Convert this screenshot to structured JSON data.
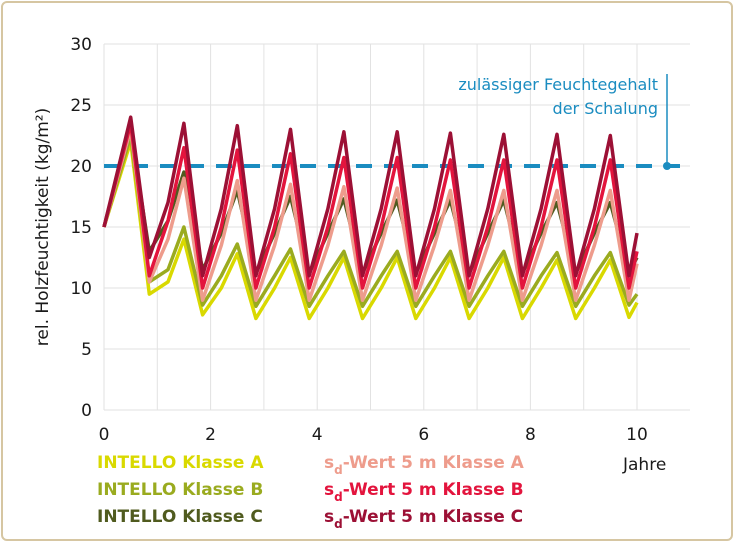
{
  "chart_data": {
    "type": "line",
    "title": "",
    "xlabel": "Jahre",
    "ylabel": "rel. Holzfeuchtigkeit (kg/m²)",
    "xlim": [
      0,
      10
    ],
    "ylim": [
      0,
      30
    ],
    "xticks": [
      0,
      2,
      4,
      6,
      8,
      10
    ],
    "yticks": [
      0,
      5,
      10,
      15,
      20,
      25,
      30
    ],
    "grid": true,
    "legend_placement": "bottom",
    "x": [
      0,
      0.5,
      0.85,
      1.2,
      1.5,
      1.85,
      2.2,
      2.5,
      2.85,
      3.2,
      3.5,
      3.85,
      4.2,
      4.5,
      4.85,
      5.2,
      5.5,
      5.85,
      6.2,
      6.5,
      6.85,
      7.2,
      7.5,
      7.85,
      8.2,
      8.5,
      8.85,
      9.2,
      9.5,
      9.85,
      10
    ],
    "series": [
      {
        "name": "INTELLO Klasse A",
        "color": "#d9d900",
        "values": [
          15,
          22,
          9.5,
          10.5,
          14,
          7.8,
          10,
          12.8,
          7.5,
          10,
          12.5,
          7.5,
          10,
          12.5,
          7.5,
          10,
          12.5,
          7.5,
          10,
          12.5,
          7.5,
          10,
          12.5,
          7.5,
          10,
          12.3,
          7.5,
          10,
          12.3,
          7.6,
          8.8
        ]
      },
      {
        "name": "INTELLO Klasse B",
        "color": "#9aab1f",
        "values": [
          15,
          22.5,
          10.5,
          11.5,
          15,
          8.6,
          11,
          13.6,
          8.5,
          11,
          13.2,
          8.5,
          11,
          13,
          8.5,
          11,
          13,
          8.5,
          11,
          13,
          8.5,
          11,
          13,
          8.5,
          11,
          12.9,
          8.5,
          11,
          12.9,
          8.6,
          9.5
        ]
      },
      {
        "name": "INTELLO Klasse C",
        "color": "#505b1f",
        "values": [
          15,
          23,
          13,
          15.5,
          19.5,
          11.5,
          14.5,
          18,
          11.2,
          14.5,
          17.5,
          11.2,
          14.5,
          17.3,
          11.2,
          14.5,
          17.2,
          11.2,
          14.5,
          17.2,
          11.2,
          14.5,
          17.2,
          11.2,
          14.5,
          17,
          11.2,
          14.5,
          17,
          11.3,
          12.5
        ]
      },
      {
        "name": "sd-Wert 5 m Klasse A",
        "name_parts": {
          "s": "s",
          "sub": "d",
          "rest": "-Wert 5 m Klasse A"
        },
        "color": "#ee9c8c",
        "values": [
          15,
          23,
          10.5,
          14,
          19,
          9,
          13.5,
          18.8,
          9,
          13.5,
          18.5,
          9,
          13.5,
          18.3,
          9,
          13.5,
          18.2,
          9,
          13.5,
          18,
          9,
          13.5,
          18,
          9,
          13.5,
          18,
          9,
          13.5,
          18,
          9,
          12
        ]
      },
      {
        "name": "sd-Wert 5 m Klasse B",
        "name_parts": {
          "s": "s",
          "sub": "d",
          "rest": "-Wert 5 m Klasse B"
        },
        "color": "#e3143d",
        "values": [
          15,
          23.5,
          11,
          15.5,
          21.5,
          10,
          15,
          21.3,
          10,
          15,
          21,
          10,
          15,
          20.7,
          10,
          15,
          20.7,
          10,
          15,
          20.5,
          10,
          15,
          20.5,
          10,
          15,
          20.5,
          10,
          15,
          20.5,
          10,
          13
        ]
      },
      {
        "name": "sd-Wert 5 m Klasse C",
        "name_parts": {
          "s": "s",
          "sub": "d",
          "rest": "-Wert 5 m Klasse C"
        },
        "color": "#9c1035",
        "values": [
          15,
          24,
          12.5,
          17,
          23.5,
          11,
          16.5,
          23.3,
          11,
          16.5,
          23,
          11,
          16.5,
          22.8,
          11,
          16.5,
          22.8,
          11,
          16.5,
          22.7,
          11,
          16.5,
          22.6,
          11,
          16.5,
          22.6,
          11,
          16.5,
          22.5,
          11,
          14.5
        ]
      }
    ],
    "threshold": {
      "value": 20,
      "color": "#1a8cc0",
      "style": "dashed",
      "label_line1": "zulässiger Feuchtegehalt",
      "label_line2": "der Schalung"
    }
  }
}
